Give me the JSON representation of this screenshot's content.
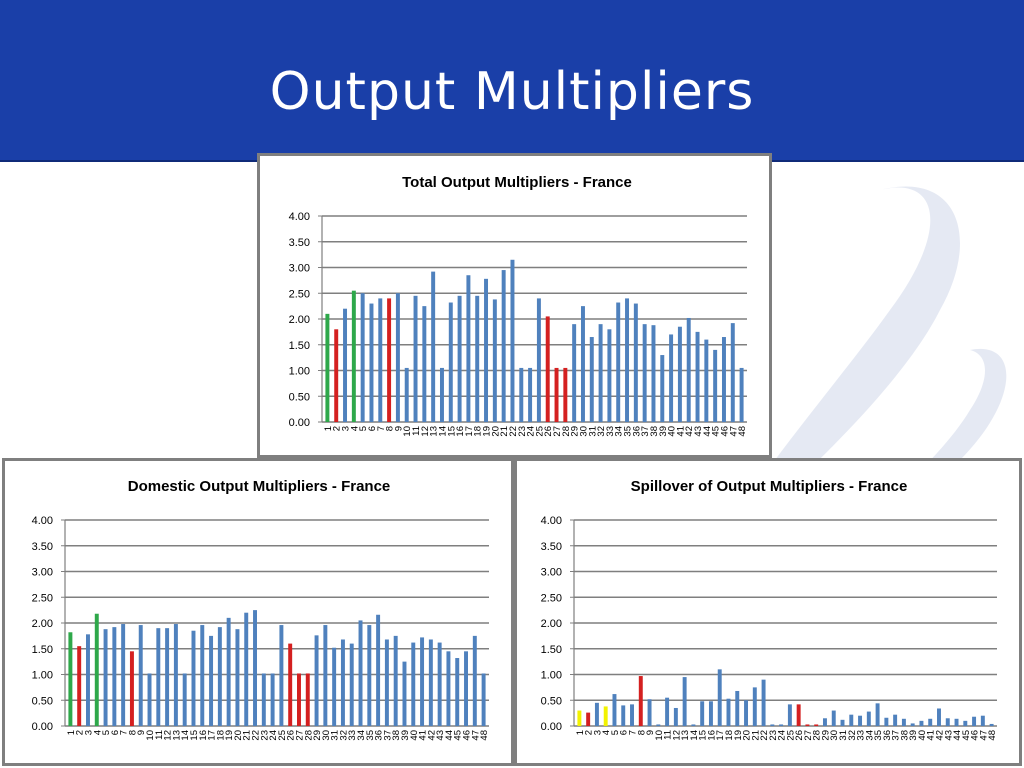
{
  "slide": {
    "title": "Output Multipliers"
  },
  "colors": {
    "header": "#1a3fa8",
    "bar": "#4f81bd",
    "green": "#2ea84a",
    "red": "#d42020",
    "yellow": "#f2f200",
    "grid": "#7f7f7f"
  },
  "chart_data": [
    {
      "type": "bar",
      "title": "Total Output Multipliers - France",
      "xlabel": "",
      "ylabel": "",
      "ylim": [
        0,
        4
      ],
      "yticks": [
        "0.00",
        "0.50",
        "1.00",
        "1.50",
        "2.00",
        "2.50",
        "3.00",
        "3.50",
        "4.00"
      ],
      "grid": true,
      "categories": [
        "1",
        "2",
        "3",
        "4",
        "5",
        "6",
        "7",
        "8",
        "9",
        "10",
        "11",
        "12",
        "13",
        "14",
        "15",
        "16",
        "17",
        "18",
        "19",
        "20",
        "21",
        "22",
        "23",
        "24",
        "25",
        "26",
        "27",
        "28",
        "29",
        "30",
        "31",
        "32",
        "33",
        "34",
        "35",
        "36",
        "37",
        "38",
        "39",
        "40",
        "41",
        "42",
        "43",
        "44",
        "45",
        "46",
        "47",
        "48"
      ],
      "values": [
        2.1,
        1.8,
        2.2,
        2.55,
        2.5,
        2.3,
        2.4,
        2.4,
        2.5,
        1.05,
        2.45,
        2.25,
        2.92,
        1.05,
        2.32,
        2.45,
        2.85,
        2.45,
        2.78,
        2.38,
        2.95,
        3.15,
        1.05,
        1.05,
        2.4,
        2.05,
        1.05,
        1.05,
        1.9,
        2.25,
        1.65,
        1.9,
        1.8,
        2.32,
        2.4,
        2.3,
        1.9,
        1.88,
        1.3,
        1.7,
        1.85,
        2.02,
        1.75,
        1.6,
        1.4,
        1.65,
        1.92,
        1.05
      ],
      "bar_colors": [
        "green",
        "red",
        "blue",
        "green",
        "blue",
        "blue",
        "blue",
        "red",
        "blue",
        "blue",
        "blue",
        "blue",
        "blue",
        "blue",
        "blue",
        "blue",
        "blue",
        "blue",
        "blue",
        "blue",
        "blue",
        "blue",
        "blue",
        "blue",
        "blue",
        "red",
        "red",
        "red",
        "blue",
        "blue",
        "blue",
        "blue",
        "blue",
        "blue",
        "blue",
        "blue",
        "blue",
        "blue",
        "blue",
        "blue",
        "blue",
        "blue",
        "blue",
        "blue",
        "blue",
        "blue",
        "blue",
        "blue"
      ]
    },
    {
      "type": "bar",
      "title": "Domestic Output Multipliers - France",
      "xlabel": "",
      "ylabel": "",
      "ylim": [
        0,
        4
      ],
      "yticks": [
        "0.00",
        "0.50",
        "1.00",
        "1.50",
        "2.00",
        "2.50",
        "3.00",
        "3.50",
        "4.00"
      ],
      "grid": true,
      "categories": [
        "1",
        "2",
        "3",
        "4",
        "5",
        "6",
        "7",
        "8",
        "9",
        "10",
        "11",
        "12",
        "13",
        "14",
        "15",
        "16",
        "17",
        "18",
        "19",
        "20",
        "21",
        "22",
        "23",
        "24",
        "25",
        "26",
        "27",
        "28",
        "29",
        "30",
        "31",
        "32",
        "33",
        "34",
        "35",
        "36",
        "37",
        "38",
        "39",
        "40",
        "41",
        "42",
        "43",
        "44",
        "45",
        "46",
        "47",
        "48"
      ],
      "values": [
        1.82,
        1.55,
        1.78,
        2.18,
        1.88,
        1.92,
        1.98,
        1.45,
        1.96,
        1.02,
        1.9,
        1.9,
        1.98,
        1.02,
        1.85,
        1.96,
        1.75,
        1.92,
        2.1,
        1.88,
        2.2,
        2.25,
        1.02,
        1.02,
        1.96,
        1.6,
        1.02,
        1.02,
        1.76,
        1.96,
        1.52,
        1.68,
        1.6,
        2.05,
        1.96,
        2.16,
        1.68,
        1.75,
        1.25,
        1.62,
        1.72,
        1.68,
        1.62,
        1.45,
        1.32,
        1.45,
        1.75,
        1.02
      ],
      "bar_colors": [
        "green",
        "red",
        "blue",
        "green",
        "blue",
        "blue",
        "blue",
        "red",
        "blue",
        "blue",
        "blue",
        "blue",
        "blue",
        "blue",
        "blue",
        "blue",
        "blue",
        "blue",
        "blue",
        "blue",
        "blue",
        "blue",
        "blue",
        "blue",
        "blue",
        "red",
        "red",
        "red",
        "blue",
        "blue",
        "blue",
        "blue",
        "blue",
        "blue",
        "blue",
        "blue",
        "blue",
        "blue",
        "blue",
        "blue",
        "blue",
        "blue",
        "blue",
        "blue",
        "blue",
        "blue",
        "blue",
        "blue"
      ]
    },
    {
      "type": "bar",
      "title": "Spillover of Output Multipliers - France",
      "xlabel": "",
      "ylabel": "",
      "ylim": [
        0,
        4
      ],
      "yticks": [
        "0.00",
        "0.50",
        "1.00",
        "1.50",
        "2.00",
        "2.50",
        "3.00",
        "3.50",
        "4.00"
      ],
      "grid": true,
      "categories": [
        "1",
        "2",
        "3",
        "4",
        "5",
        "6",
        "7",
        "8",
        "9",
        "10",
        "11",
        "12",
        "13",
        "14",
        "15",
        "16",
        "17",
        "18",
        "19",
        "20",
        "21",
        "22",
        "23",
        "24",
        "25",
        "26",
        "27",
        "28",
        "29",
        "30",
        "31",
        "32",
        "33",
        "34",
        "35",
        "36",
        "37",
        "38",
        "39",
        "40",
        "41",
        "42",
        "43",
        "44",
        "45",
        "46",
        "47",
        "48"
      ],
      "values": [
        0.3,
        0.26,
        0.45,
        0.38,
        0.62,
        0.4,
        0.42,
        0.97,
        0.52,
        0.03,
        0.55,
        0.35,
        0.95,
        0.03,
        0.48,
        0.48,
        1.1,
        0.53,
        0.68,
        0.5,
        0.75,
        0.9,
        0.03,
        0.03,
        0.42,
        0.42,
        0.03,
        0.03,
        0.15,
        0.3,
        0.12,
        0.22,
        0.2,
        0.28,
        0.44,
        0.16,
        0.22,
        0.14,
        0.05,
        0.1,
        0.14,
        0.34,
        0.15,
        0.14,
        0.1,
        0.18,
        0.2,
        0.04
      ],
      "bar_colors": [
        "yellow",
        "red",
        "blue",
        "yellow",
        "blue",
        "blue",
        "blue",
        "red",
        "blue",
        "blue",
        "blue",
        "blue",
        "blue",
        "blue",
        "blue",
        "blue",
        "blue",
        "blue",
        "blue",
        "blue",
        "blue",
        "blue",
        "blue",
        "blue",
        "blue",
        "red",
        "red",
        "red",
        "blue",
        "blue",
        "blue",
        "blue",
        "blue",
        "blue",
        "blue",
        "blue",
        "blue",
        "blue",
        "blue",
        "blue",
        "blue",
        "blue",
        "blue",
        "blue",
        "blue",
        "blue",
        "blue",
        "blue"
      ]
    }
  ]
}
